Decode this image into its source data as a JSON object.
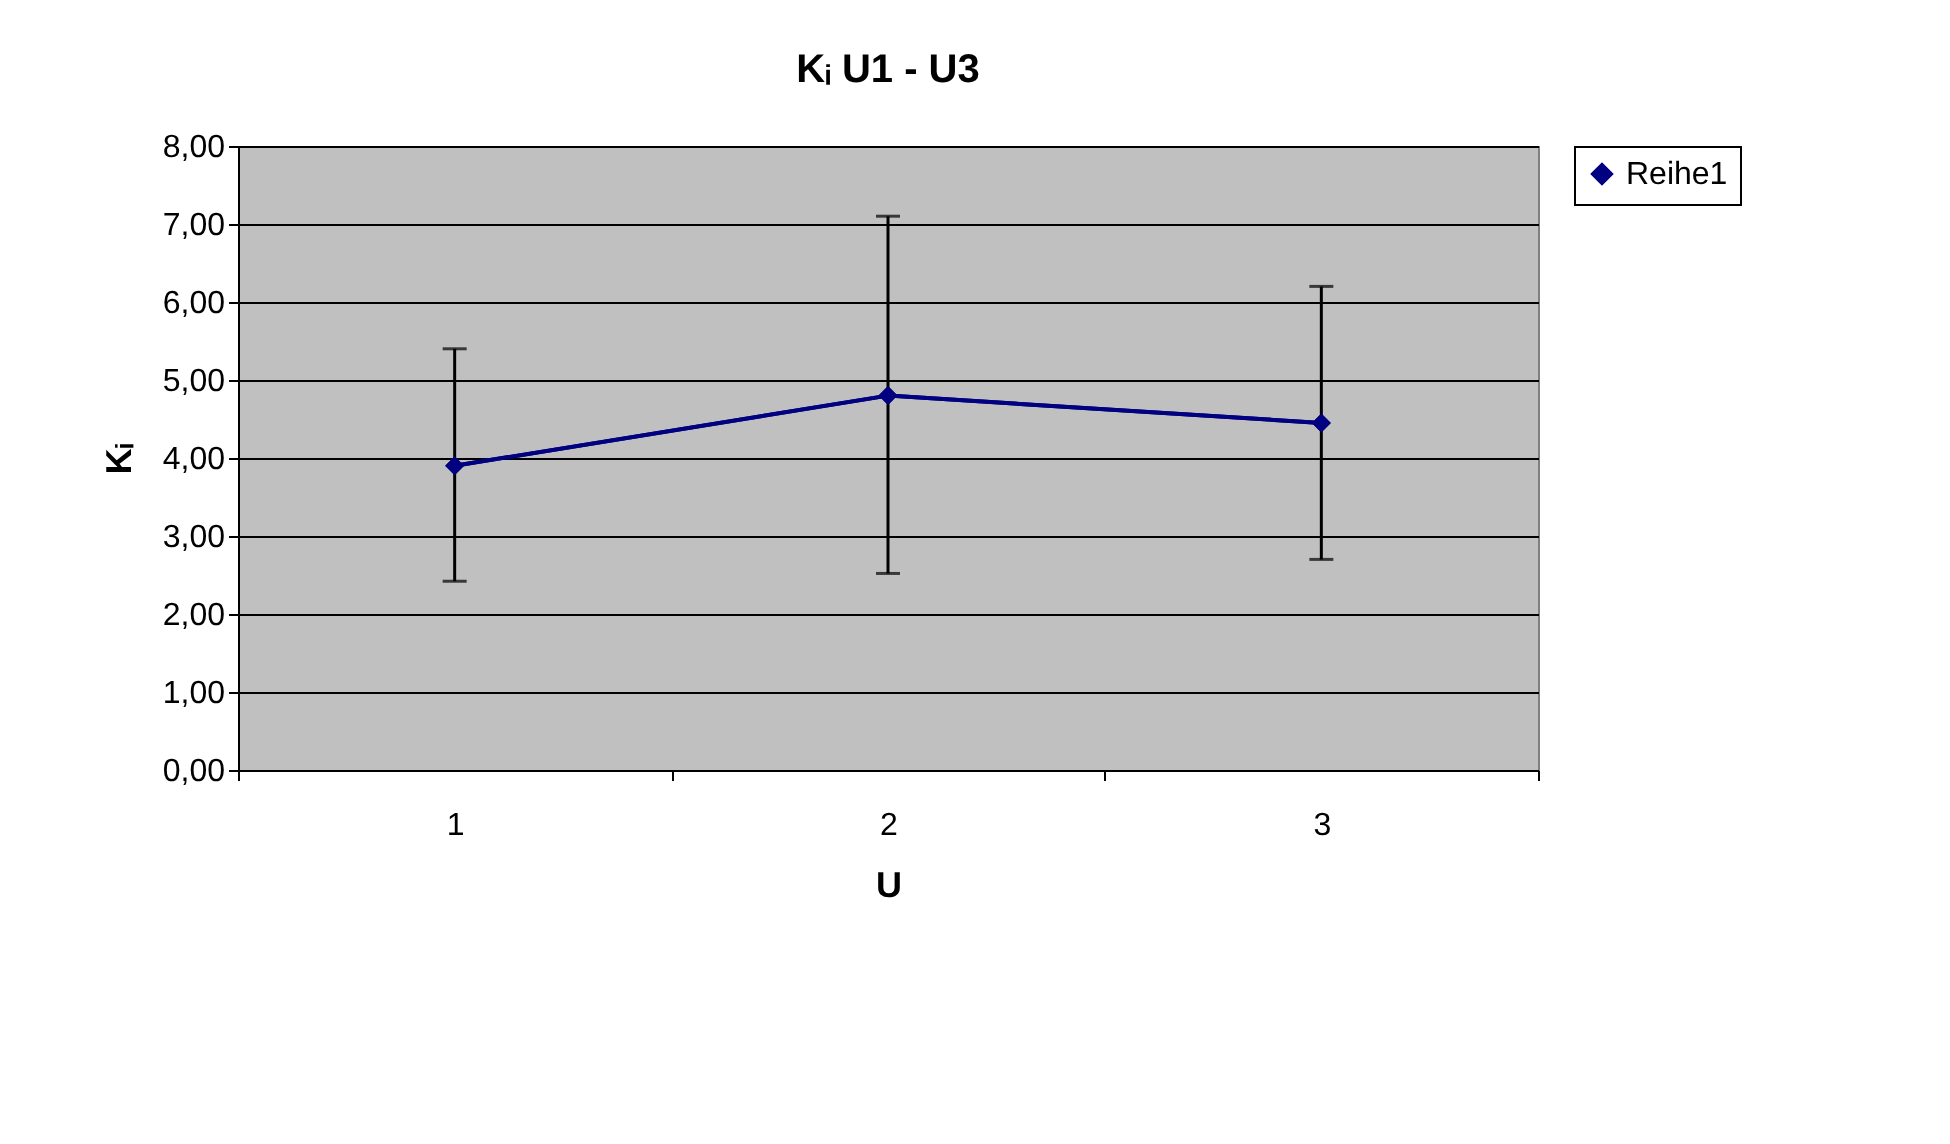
{
  "chart_data": {
    "type": "line",
    "title": "Kᵢ U1 - U3",
    "xlabel": "U",
    "ylabel": "Kᵢ",
    "categories": [
      "1",
      "2",
      "3"
    ],
    "series": [
      {
        "name": "Reihe1",
        "color": "#000080",
        "values": [
          3.9,
          4.8,
          4.45
        ],
        "errors": [
          [
            2.42,
            5.4
          ],
          [
            2.52,
            7.1
          ],
          [
            2.7,
            6.2
          ]
        ]
      }
    ],
    "ylim": [
      0,
      8
    ],
    "yticks": [
      {
        "value": 0,
        "label": "0,00"
      },
      {
        "value": 1,
        "label": "1,00"
      },
      {
        "value": 2,
        "label": "2,00"
      },
      {
        "value": 3,
        "label": "3,00"
      },
      {
        "value": 4,
        "label": "4,00"
      },
      {
        "value": 5,
        "label": "5,00"
      },
      {
        "value": 6,
        "label": "6,00"
      },
      {
        "value": 7,
        "label": "7,00"
      },
      {
        "value": 8,
        "label": "8,00"
      }
    ],
    "grid": "y",
    "legend": "right",
    "marker": "diamond",
    "line_style": "solid"
  }
}
